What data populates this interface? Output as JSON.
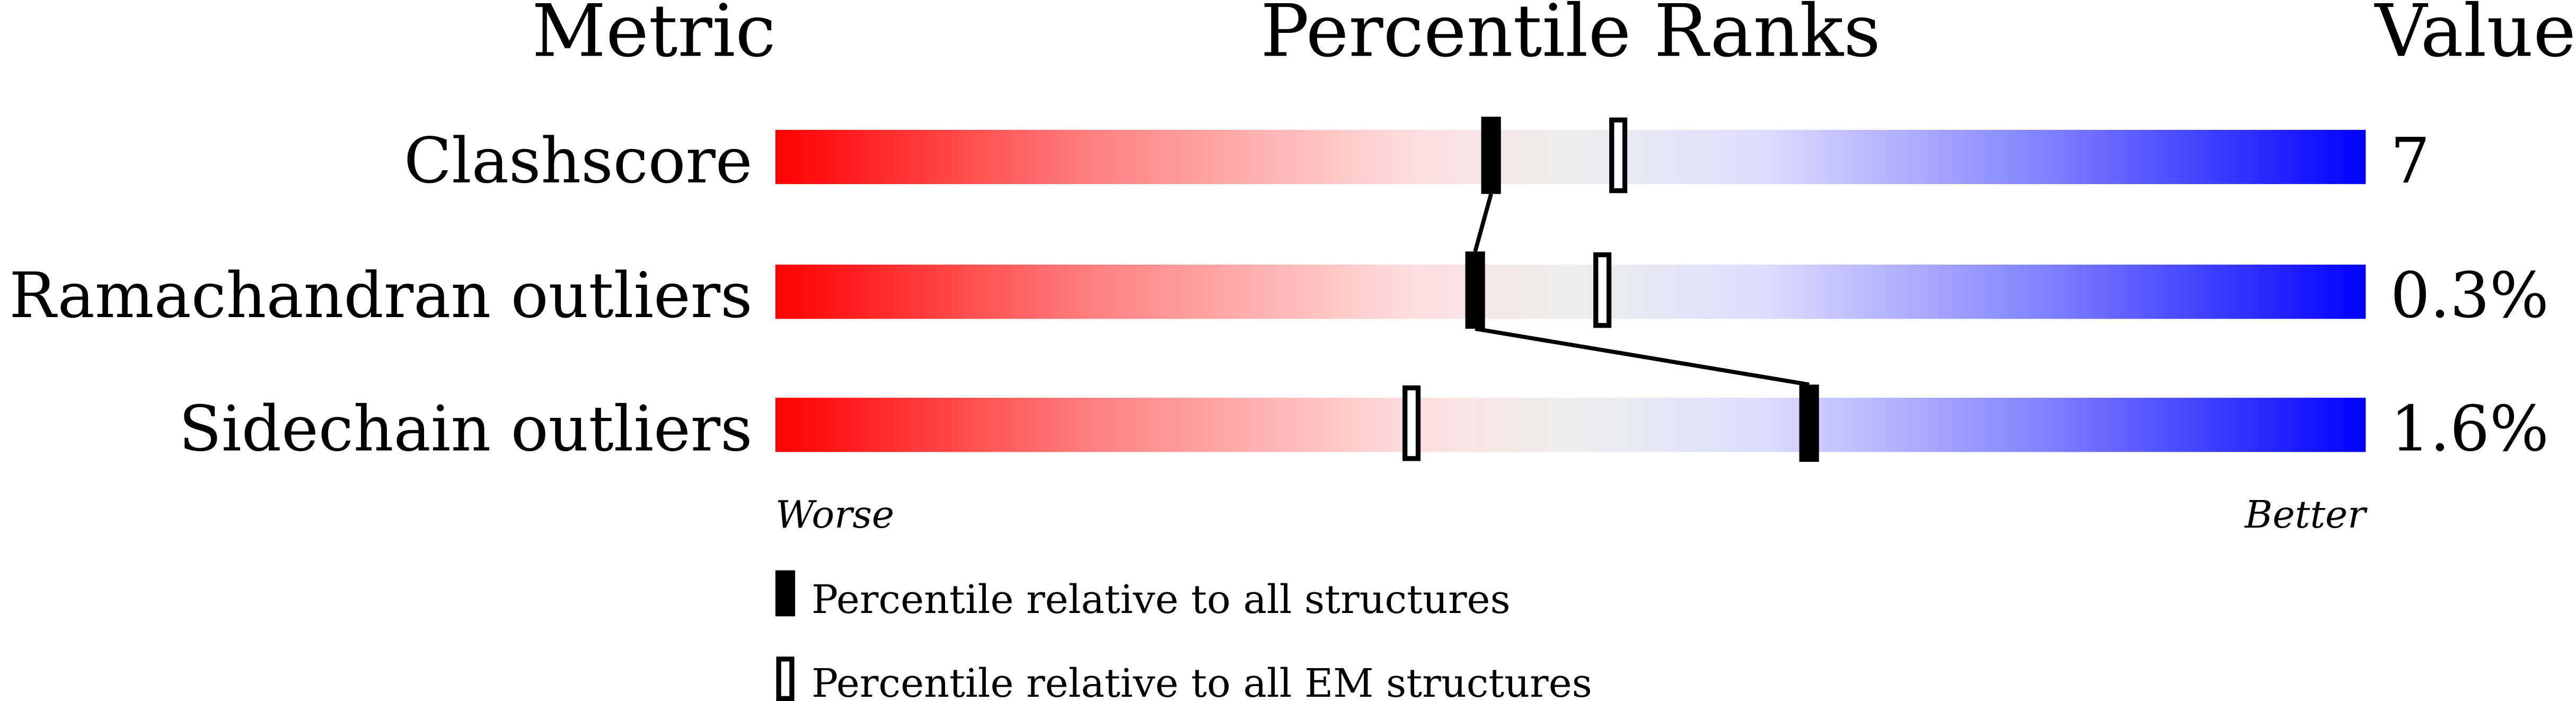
{
  "chart_data": {
    "type": "percentile-slider",
    "headers": {
      "metric": "Metric",
      "percentile": "Percentile Ranks",
      "value": "Value"
    },
    "xlim": [
      0,
      100
    ],
    "metrics": [
      {
        "name": "Clashscore",
        "value": "7",
        "percentile_all": 45,
        "percentile_em": 53
      },
      {
        "name": "Ramachandran outliers",
        "value": "0.3%",
        "percentile_all": 44,
        "percentile_em": 52
      },
      {
        "name": "Sidechain outliers",
        "value": "1.6%",
        "percentile_all": 65,
        "percentile_em": 40
      }
    ],
    "axis_labels": {
      "left": "Worse",
      "right": "Better"
    },
    "legend": {
      "all": "Percentile relative to all structures",
      "em": "Percentile relative to all EM structures"
    },
    "colors": {
      "worse": "#ff0000",
      "middle": "#eeeeee",
      "better": "#0000ff",
      "marker": "#000000"
    }
  }
}
